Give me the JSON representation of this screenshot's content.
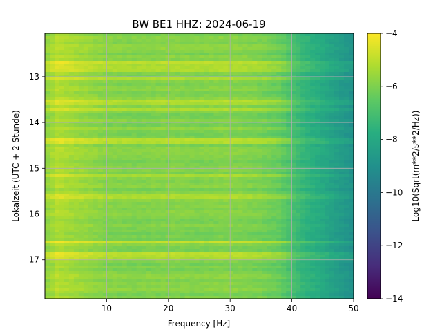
{
  "chart_data": {
    "type": "heatmap",
    "title": "BW BE1  HHZ: 2024-06-19",
    "xlabel": "Frequency [Hz]",
    "ylabel": "Lokalzeit (UTC + 2 Stunde)",
    "xlim": [
      0,
      50
    ],
    "ylim": [
      17.85,
      12.05
    ],
    "y_inverted": true,
    "x_ticks": [
      10,
      20,
      30,
      40,
      50
    ],
    "x_tick_labels": [
      "10",
      "20",
      "30",
      "40",
      "50"
    ],
    "y_ticks": [
      13,
      14,
      15,
      16,
      17
    ],
    "y_tick_labels": [
      "13",
      "14",
      "15",
      "16",
      "17"
    ],
    "grid": true,
    "colormap": "viridis",
    "colorbar": {
      "label": "Log10(Sqrt(m**2/s**2/Hz))",
      "range": [
        -14,
        -4
      ],
      "ticks": [
        -4,
        -6,
        -8,
        -10,
        -12,
        -14
      ],
      "tick_labels": [
        "−4",
        "−6",
        "−8",
        "−10",
        "−12",
        "−14"
      ]
    },
    "value_profile": {
      "frequencies": [
        0,
        2,
        5,
        10,
        15,
        20,
        25,
        30,
        35,
        38,
        40,
        42,
        45,
        48,
        50
      ],
      "values": [
        -5.8,
        -5.2,
        -5.5,
        -5.9,
        -6.0,
        -5.9,
        -6.0,
        -5.9,
        -6.1,
        -6.4,
        -7.0,
        -7.5,
        -8.0,
        -8.6,
        -9.0
      ]
    },
    "bright_band_times": [
      12.7,
      12.85,
      13.05,
      13.55,
      13.7,
      14.4,
      15.15,
      15.6,
      16.6,
      16.85,
      16.95
    ]
  }
}
